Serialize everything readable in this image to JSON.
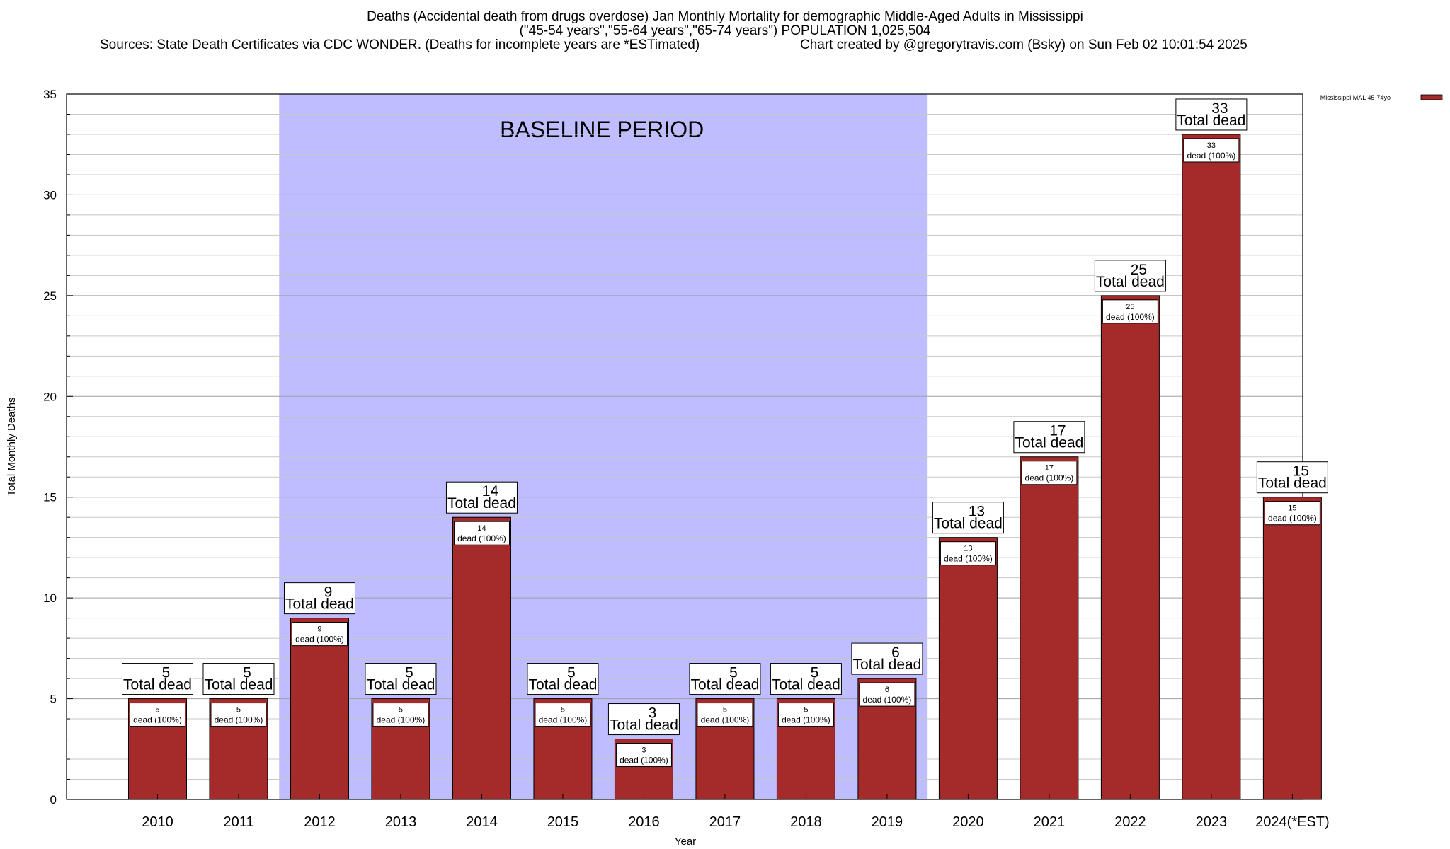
{
  "header": {
    "title_line1": "Deaths (Accidental death from drugs overdose) Jan Monthly Mortality for demographic Middle-Aged Adults in Mississippi",
    "title_line2": "(\"45-54 years\",\"55-64 years\",\"65-74 years\") POPULATION 1,025,504",
    "sources": "Sources: State Death Certificates via CDC WONDER. (Deaths for incomplete years are *ESTimated)",
    "credit": "Chart created by @gregorytravis.com (Bsky) on Sun Feb 02 10:01:54 2025"
  },
  "chart_data": {
    "type": "bar",
    "xlabel": "Year",
    "ylabel": "Total Monthly Deaths",
    "ylim": [
      0,
      35
    ],
    "yticks": [
      0,
      5,
      10,
      15,
      20,
      25,
      30,
      35
    ],
    "y_minor_step": 1,
    "grid": true,
    "legend_position": "top-right",
    "categories": [
      "2010",
      "2011",
      "2012",
      "2013",
      "2014",
      "2015",
      "2016",
      "2017",
      "2018",
      "2019",
      "2020",
      "2021",
      "2022",
      "2023",
      "2024(*EST)"
    ],
    "series": [
      {
        "name": "Mississippi MAL 45-74yo",
        "color": "#a52a2a",
        "values": [
          5,
          5,
          9,
          5,
          14,
          5,
          3,
          5,
          5,
          6,
          13,
          17,
          25,
          33,
          15
        ]
      }
    ],
    "total_label_text": "Total dead",
    "segment_label_suffix": "dead (100%)",
    "baseline_period": {
      "label": "BASELINE PERIOD",
      "start": "2012",
      "end": "2019",
      "color": "#bdbdff"
    }
  }
}
